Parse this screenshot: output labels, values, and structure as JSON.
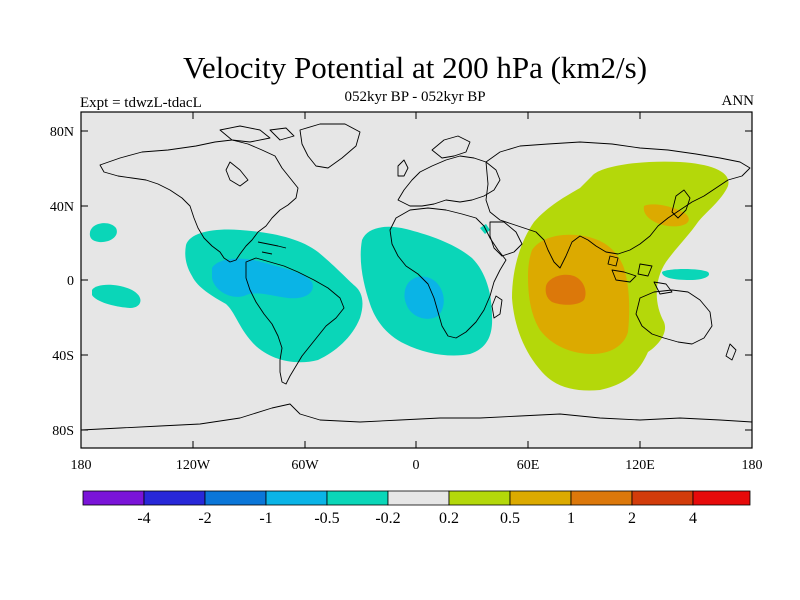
{
  "figure": {
    "title": "Velocity Potential at 200 hPa (km2/s)",
    "subtitle": "052kyr BP - 052kyr BP",
    "experiment": "Expt = tdwzL-tdacL",
    "season": "ANN"
  },
  "map": {
    "projection": "cylindrical equidistant",
    "lon_ticks": [
      "180",
      "120W",
      "60W",
      "0",
      "60E",
      "120E",
      "180"
    ],
    "lat_ticks": [
      "80N",
      "40N",
      "0",
      "40S",
      "80S"
    ],
    "background_color": "#e6e6e6",
    "coastline_color": "#000000"
  },
  "colorbar": {
    "colors": [
      "#7a14d8",
      "#2828d8",
      "#0a76d8",
      "#0ab4e6",
      "#0ad6b8",
      "#e6e6e6",
      "#b4d80a",
      "#dcaa00",
      "#dc780a",
      "#d23c0a",
      "#e60a0a"
    ],
    "labels": [
      "-4",
      "-2",
      "-1",
      "-0.5",
      "-0.2",
      "0.2",
      "0.5",
      "1",
      "2",
      "4"
    ]
  }
}
